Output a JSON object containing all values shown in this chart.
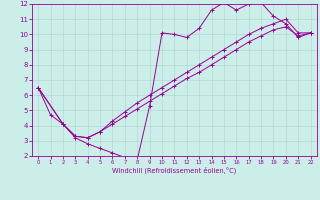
{
  "xlabel": "Windchill (Refroidissement éolien,°C)",
  "bg_color": "#cceee8",
  "line_color": "#990099",
  "xlim": [
    -0.5,
    22.5
  ],
  "ylim": [
    2,
    12
  ],
  "yticks": [
    2,
    3,
    4,
    5,
    6,
    7,
    8,
    9,
    10,
    11,
    12
  ],
  "xticks": [
    0,
    1,
    2,
    3,
    4,
    5,
    6,
    7,
    8,
    9,
    10,
    11,
    12,
    13,
    14,
    15,
    16,
    17,
    18,
    19,
    20,
    21,
    22
  ],
  "line1_x": [
    0,
    1,
    2,
    3,
    4,
    5,
    6,
    7,
    8,
    9,
    10,
    11,
    12,
    13,
    14,
    15,
    16,
    17,
    18,
    19,
    20,
    21,
    22
  ],
  "line1_y": [
    6.5,
    4.7,
    4.1,
    3.2,
    2.8,
    2.5,
    2.2,
    1.9,
    1.75,
    5.3,
    10.1,
    10.0,
    9.8,
    10.4,
    11.6,
    12.1,
    11.6,
    12.0,
    12.1,
    11.2,
    10.7,
    9.8,
    10.1
  ],
  "line2_x": [
    0,
    2,
    3,
    4,
    5,
    6,
    7,
    8,
    9,
    10,
    11,
    12,
    13,
    14,
    15,
    16,
    17,
    18,
    19,
    20,
    21,
    22
  ],
  "line2_y": [
    6.5,
    4.1,
    3.3,
    3.2,
    3.6,
    4.1,
    4.6,
    5.1,
    5.6,
    6.1,
    6.6,
    7.1,
    7.5,
    8.0,
    8.5,
    9.0,
    9.5,
    9.9,
    10.3,
    10.5,
    9.9,
    10.1
  ],
  "line3_x": [
    0,
    2,
    3,
    4,
    5,
    6,
    7,
    8,
    9,
    10,
    11,
    12,
    13,
    14,
    15,
    16,
    17,
    18,
    19,
    20,
    21,
    22
  ],
  "line3_y": [
    6.5,
    4.1,
    3.3,
    3.2,
    3.6,
    4.3,
    4.9,
    5.5,
    6.0,
    6.5,
    7.0,
    7.5,
    8.0,
    8.5,
    9.0,
    9.5,
    10.0,
    10.4,
    10.7,
    11.0,
    10.1,
    10.1
  ]
}
